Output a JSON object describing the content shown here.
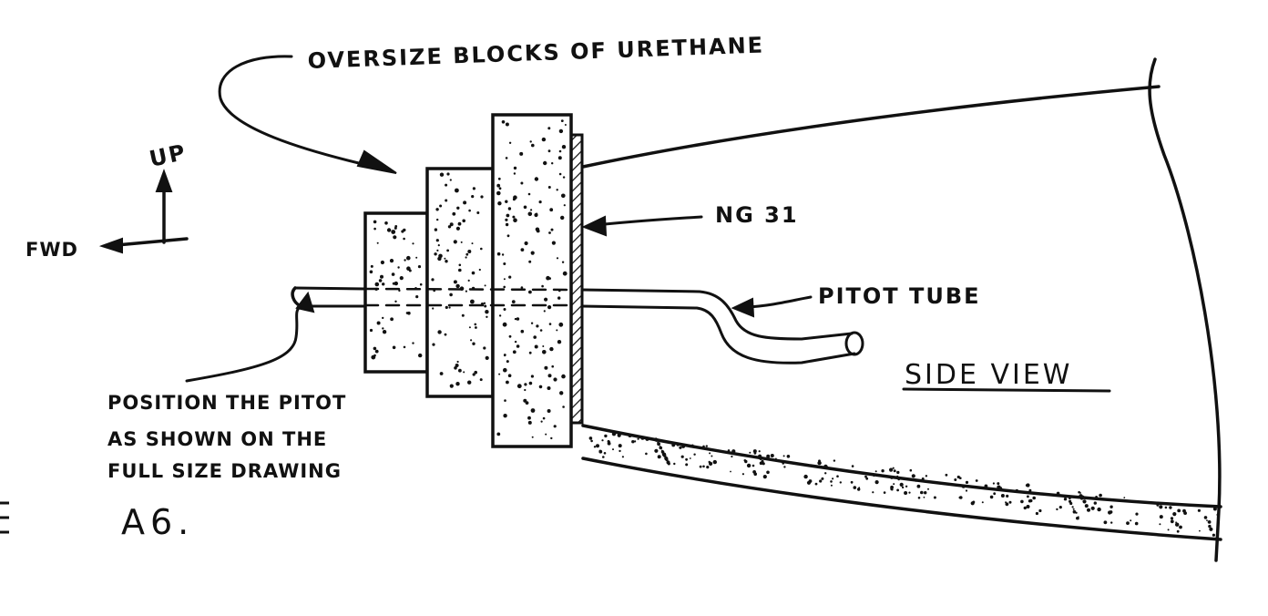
{
  "diagram": {
    "labels": {
      "oversize_blocks": "OVERSIZE BLOCKS OF URETHANE",
      "up": "UP",
      "fwd": "FWD",
      "ng31": "NG 31",
      "pitot_tube": "PITOT TUBE",
      "side_view": "SIDE VIEW",
      "position_note_line1": "POSITION THE PITOT",
      "position_note_line2": "AS SHOWN ON THE",
      "position_note_line3": "FULL SIZE DRAWING",
      "figure_ref": "A6."
    },
    "colors": {
      "ink": "#111111",
      "paper": "#ffffff"
    }
  }
}
